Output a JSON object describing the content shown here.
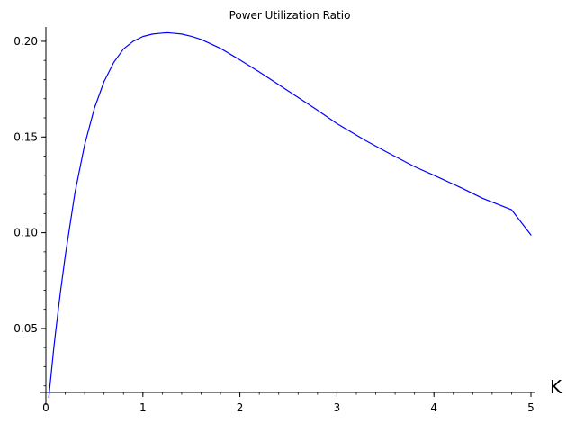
{
  "chart_data": {
    "type": "line",
    "title": "Power Utilization Ratio",
    "xlabel": "K",
    "ylabel": "",
    "xlim": [
      0,
      5
    ],
    "ylim": [
      0.01,
      0.2075
    ],
    "grid": false,
    "line_color": "#0000ff",
    "x_ticks": [
      {
        "value": 0,
        "label": "0"
      },
      {
        "value": 1,
        "label": "1"
      },
      {
        "value": 2,
        "label": "2"
      },
      {
        "value": 3,
        "label": "3"
      },
      {
        "value": 4,
        "label": "4"
      },
      {
        "value": 5,
        "label": "5"
      }
    ],
    "y_ticks": [
      {
        "value": 0.05,
        "label": "0.05"
      },
      {
        "value": 0.1,
        "label": "0.10"
      },
      {
        "value": 0.15,
        "label": "0.15"
      },
      {
        "value": 0.2,
        "label": "0.20"
      }
    ],
    "x_minor_step": 0.2,
    "y_minor_step": 0.01,
    "series": [
      {
        "x": [
          0.03,
          0.05,
          0.08,
          0.1,
          0.15,
          0.2,
          0.3,
          0.4,
          0.5,
          0.6,
          0.7,
          0.8,
          0.9,
          1.0,
          1.1,
          1.2,
          1.25,
          1.3,
          1.4,
          1.5,
          1.6,
          1.8,
          2.0,
          2.2,
          2.5,
          2.8,
          3.0,
          3.3,
          3.5,
          3.8,
          4.0,
          4.3,
          4.5,
          4.8,
          5.0
        ],
        "y": [
          0.014,
          0.024,
          0.039,
          0.048,
          0.069,
          0.088,
          0.121,
          0.146,
          0.165,
          0.179,
          0.189,
          0.196,
          0.2,
          0.2025,
          0.2038,
          0.2043,
          0.2045,
          0.2043,
          0.2038,
          0.2026,
          0.201,
          0.1963,
          0.1903,
          0.184,
          0.174,
          0.164,
          0.157,
          0.148,
          0.1425,
          0.1345,
          0.13,
          0.123,
          0.118,
          0.112,
          0.0988
        ]
      }
    ]
  }
}
